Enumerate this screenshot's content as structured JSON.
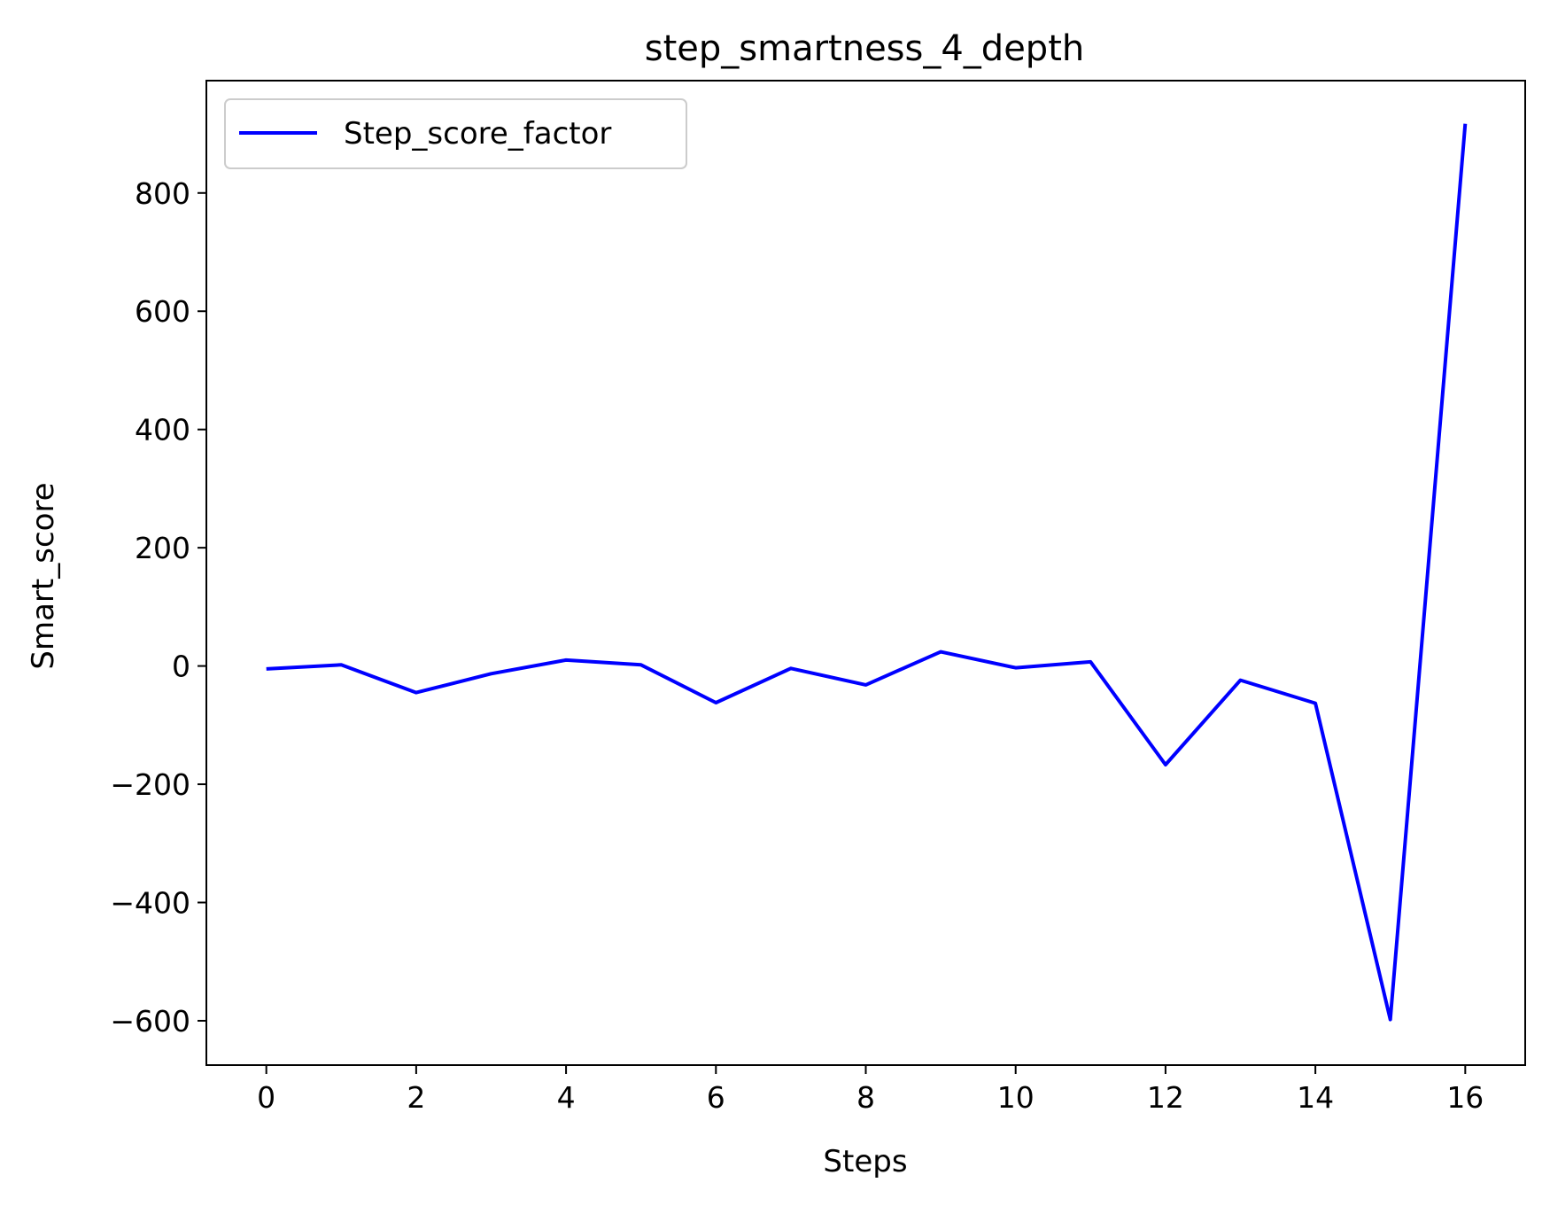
{
  "chart_data": {
    "type": "line",
    "title": "step_smartness_4_depth",
    "xlabel": "Steps",
    "ylabel": "Smart_score",
    "xlim": [
      -0.8,
      16.8
    ],
    "ylim": [
      -675,
      990
    ],
    "xticks": [
      0,
      2,
      4,
      6,
      8,
      10,
      12,
      14,
      16
    ],
    "yticks": [
      -600,
      -400,
      -200,
      0,
      200,
      400,
      600,
      800
    ],
    "xtick_labels": [
      "0",
      "2",
      "4",
      "6",
      "8",
      "10",
      "12",
      "14",
      "16"
    ],
    "ytick_labels": [
      "−600",
      "−400",
      "−200",
      "0",
      "200",
      "400",
      "600",
      "800"
    ],
    "grid": false,
    "legend_position": "upper-left",
    "series": [
      {
        "name": "Step_score_factor",
        "color": "#0000ff",
        "x": [
          0,
          1,
          2,
          3,
          4,
          5,
          6,
          7,
          8,
          9,
          10,
          11,
          12,
          13,
          14,
          15,
          16
        ],
        "y": [
          -5,
          2,
          -45,
          -13,
          10,
          2,
          -62,
          -4,
          -32,
          24,
          -3,
          7,
          -167,
          -24,
          -63,
          -598,
          917
        ]
      }
    ]
  }
}
